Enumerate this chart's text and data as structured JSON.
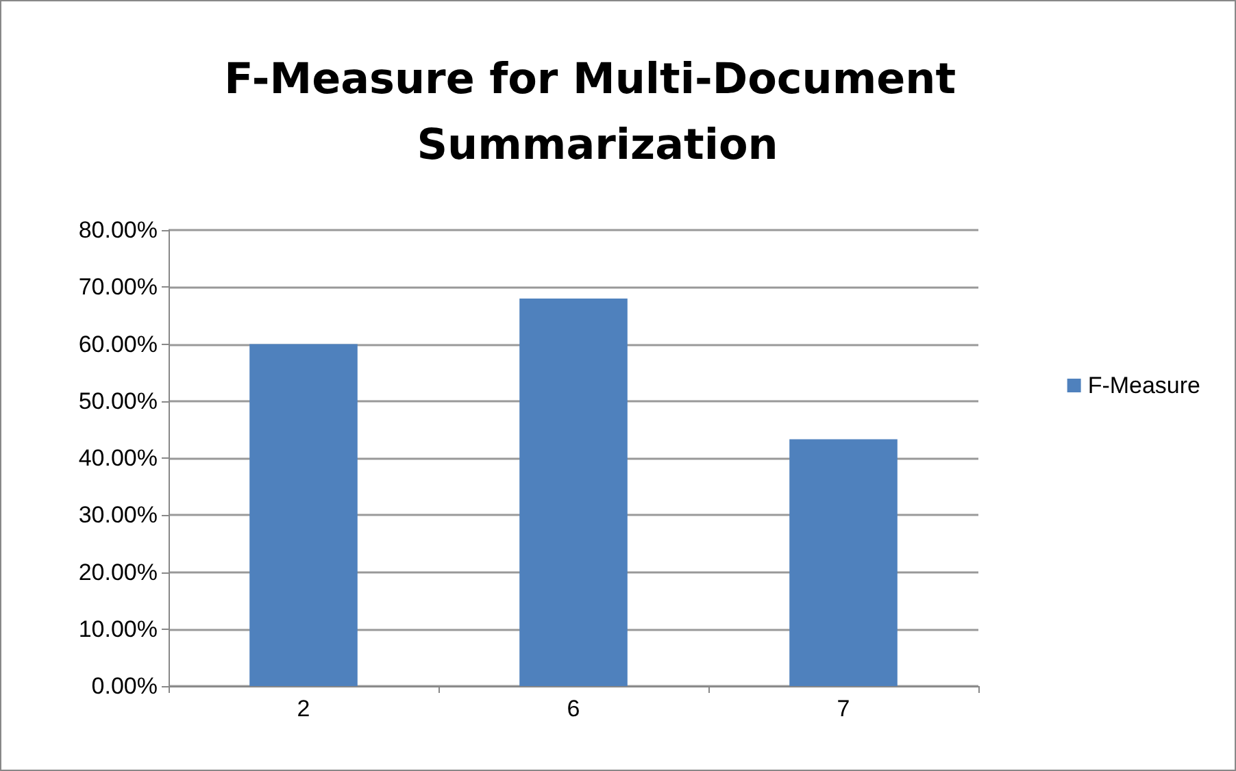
{
  "chart_data": {
    "type": "bar",
    "title": "F-Measure for Multi-Document Summarization",
    "categories": [
      "2",
      "6",
      "7"
    ],
    "series": [
      {
        "name": "F-Measure",
        "color": "#4f81bd",
        "values": [
          60,
          68,
          43.3
        ]
      }
    ],
    "ylim": [
      0,
      80
    ],
    "yticks": [
      {
        "value": 0,
        "label": "0.00%"
      },
      {
        "value": 10,
        "label": "10.00%"
      },
      {
        "value": 20,
        "label": "20.00%"
      },
      {
        "value": 30,
        "label": "30.00%"
      },
      {
        "value": 40,
        "label": "40.00%"
      },
      {
        "value": 50,
        "label": "50.00%"
      },
      {
        "value": 60,
        "label": "60.00%"
      },
      {
        "value": 70,
        "label": "70.00%"
      },
      {
        "value": 80,
        "label": "80.00%"
      }
    ],
    "grid": "y",
    "legend": "right"
  }
}
